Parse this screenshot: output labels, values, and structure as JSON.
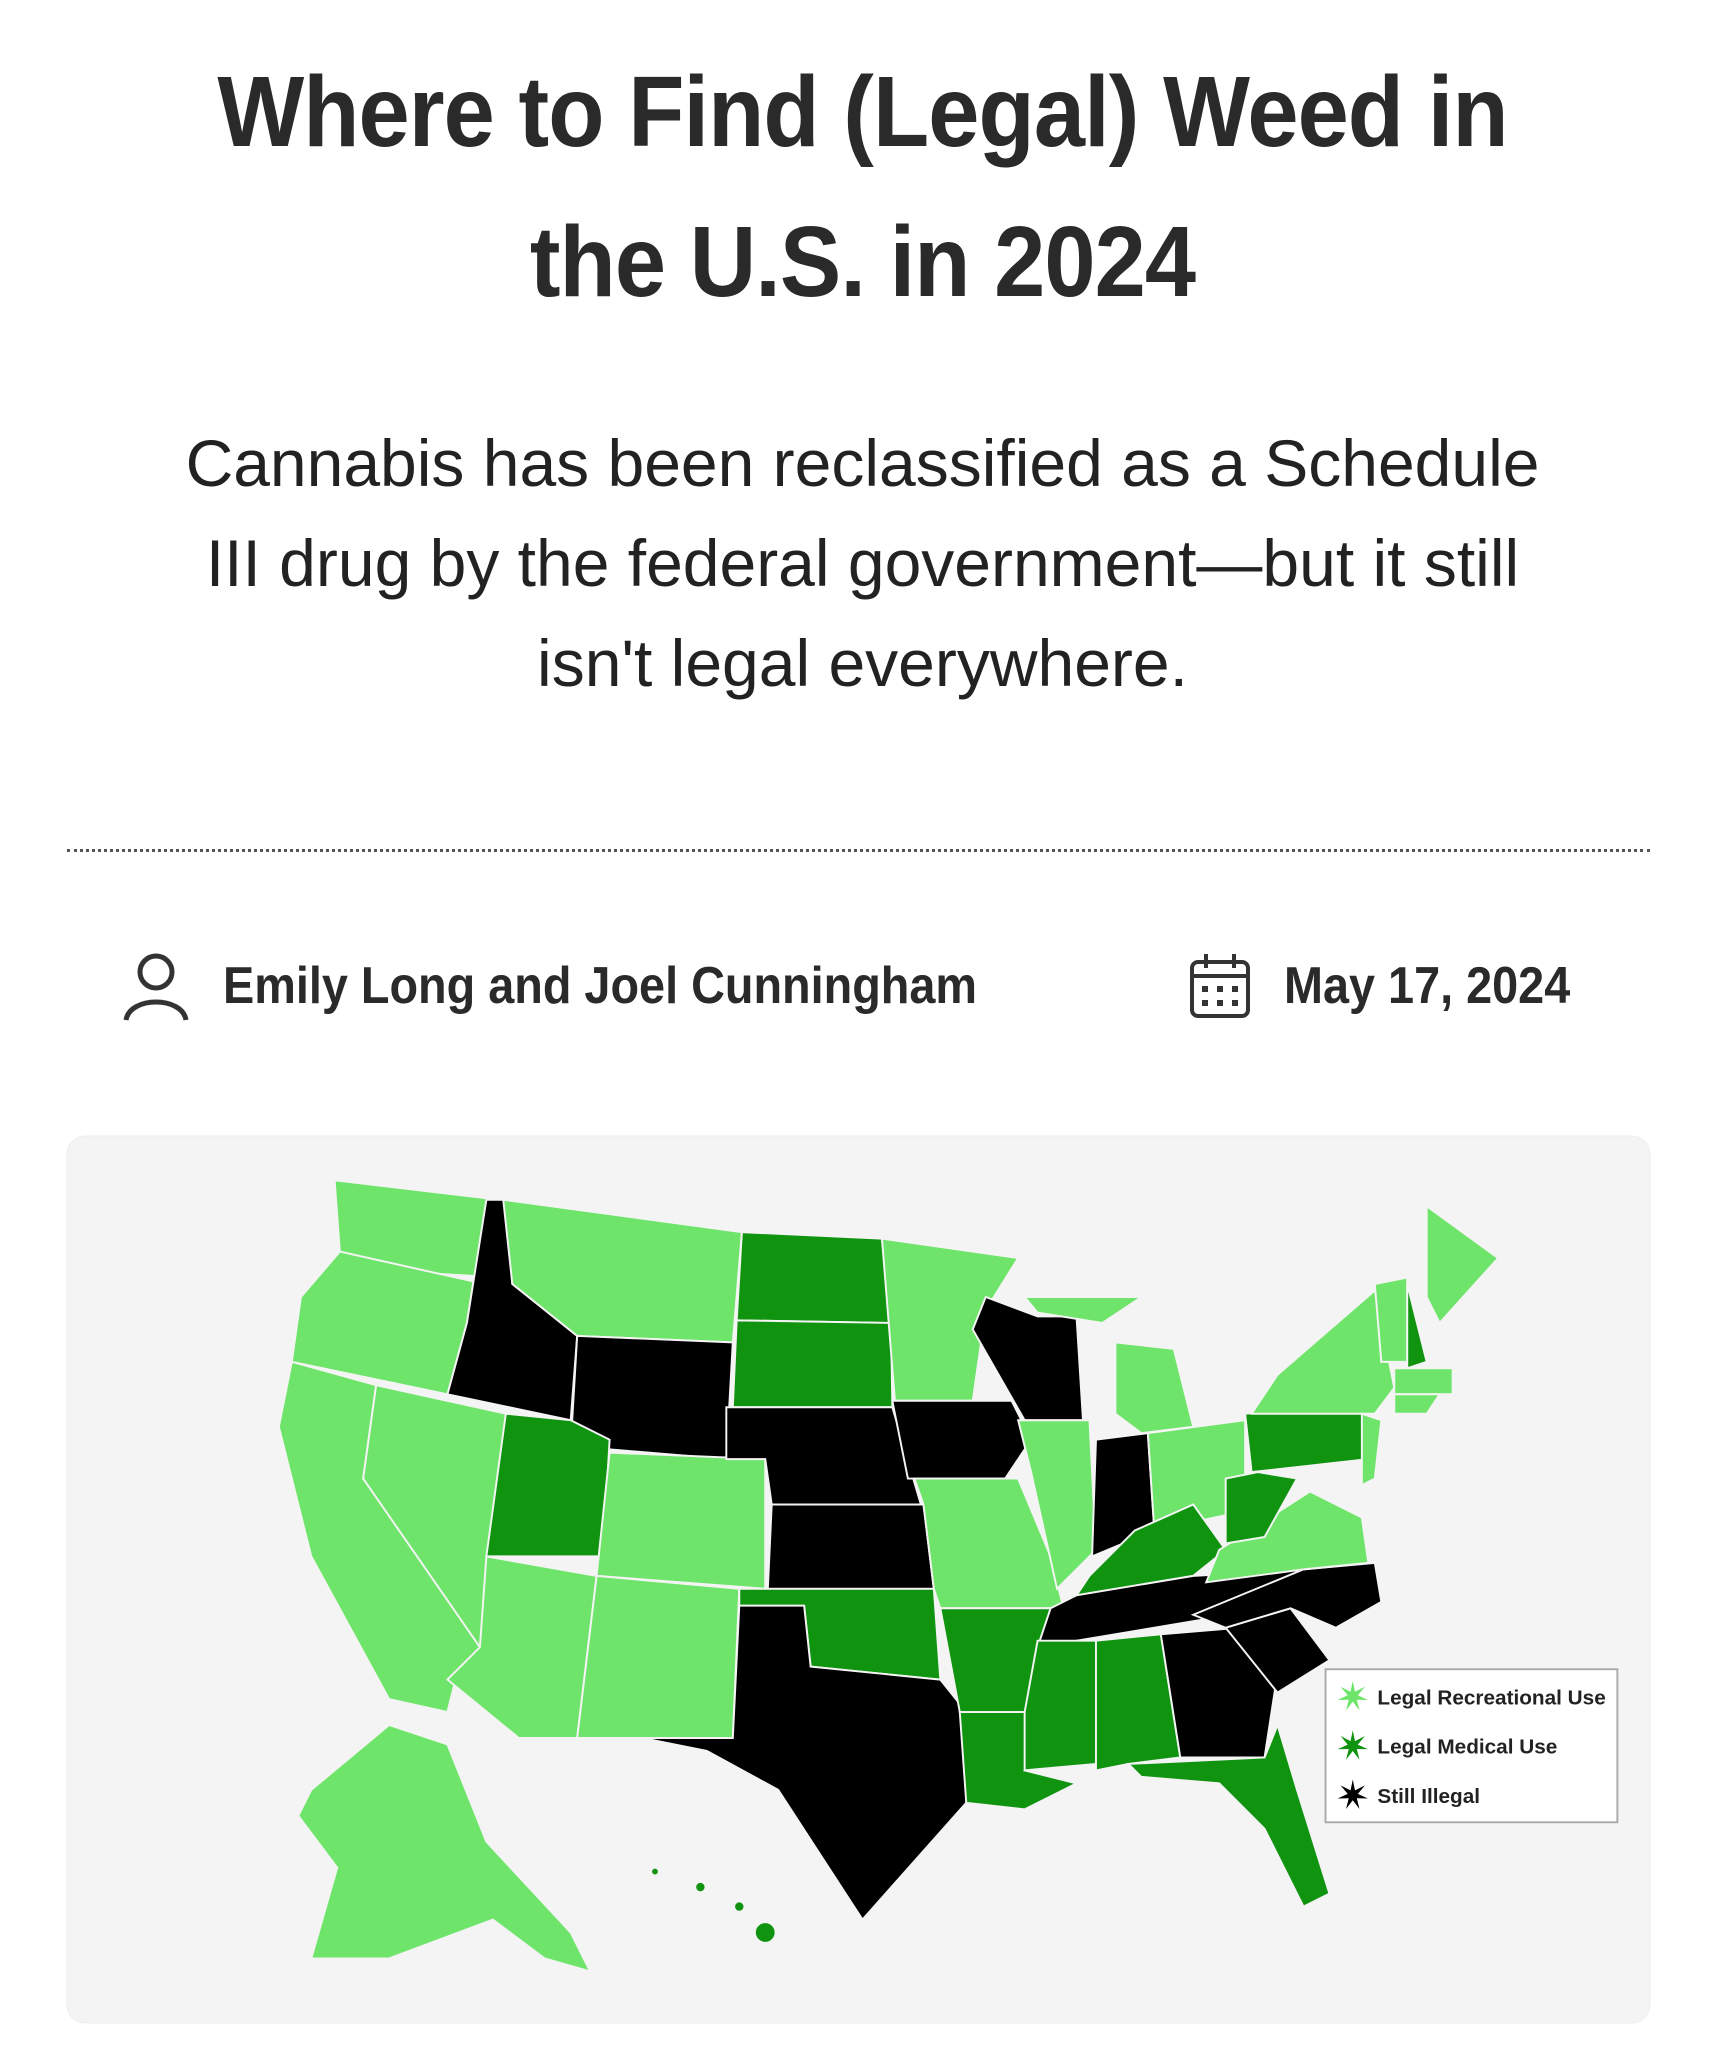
{
  "header": {
    "title_lines": [
      "Where to Find (Legal) Weed in",
      "the U.S. in 2024"
    ],
    "subtitle_lines": [
      "Cannabis has been reclassified as a Schedule",
      "III drug by the federal government—but it still",
      "isn't legal everywhere."
    ]
  },
  "byline": {
    "author": "Emily Long and Joel Cunningham",
    "date": "May 17, 2024"
  },
  "map": {
    "legend": [
      {
        "label": "Legal Recreational Use",
        "color": "#6ee46a"
      },
      {
        "label": "Legal Medical Use",
        "color": "#109410"
      },
      {
        "label": "Still Illegal",
        "color": "#000000"
      }
    ]
  }
}
